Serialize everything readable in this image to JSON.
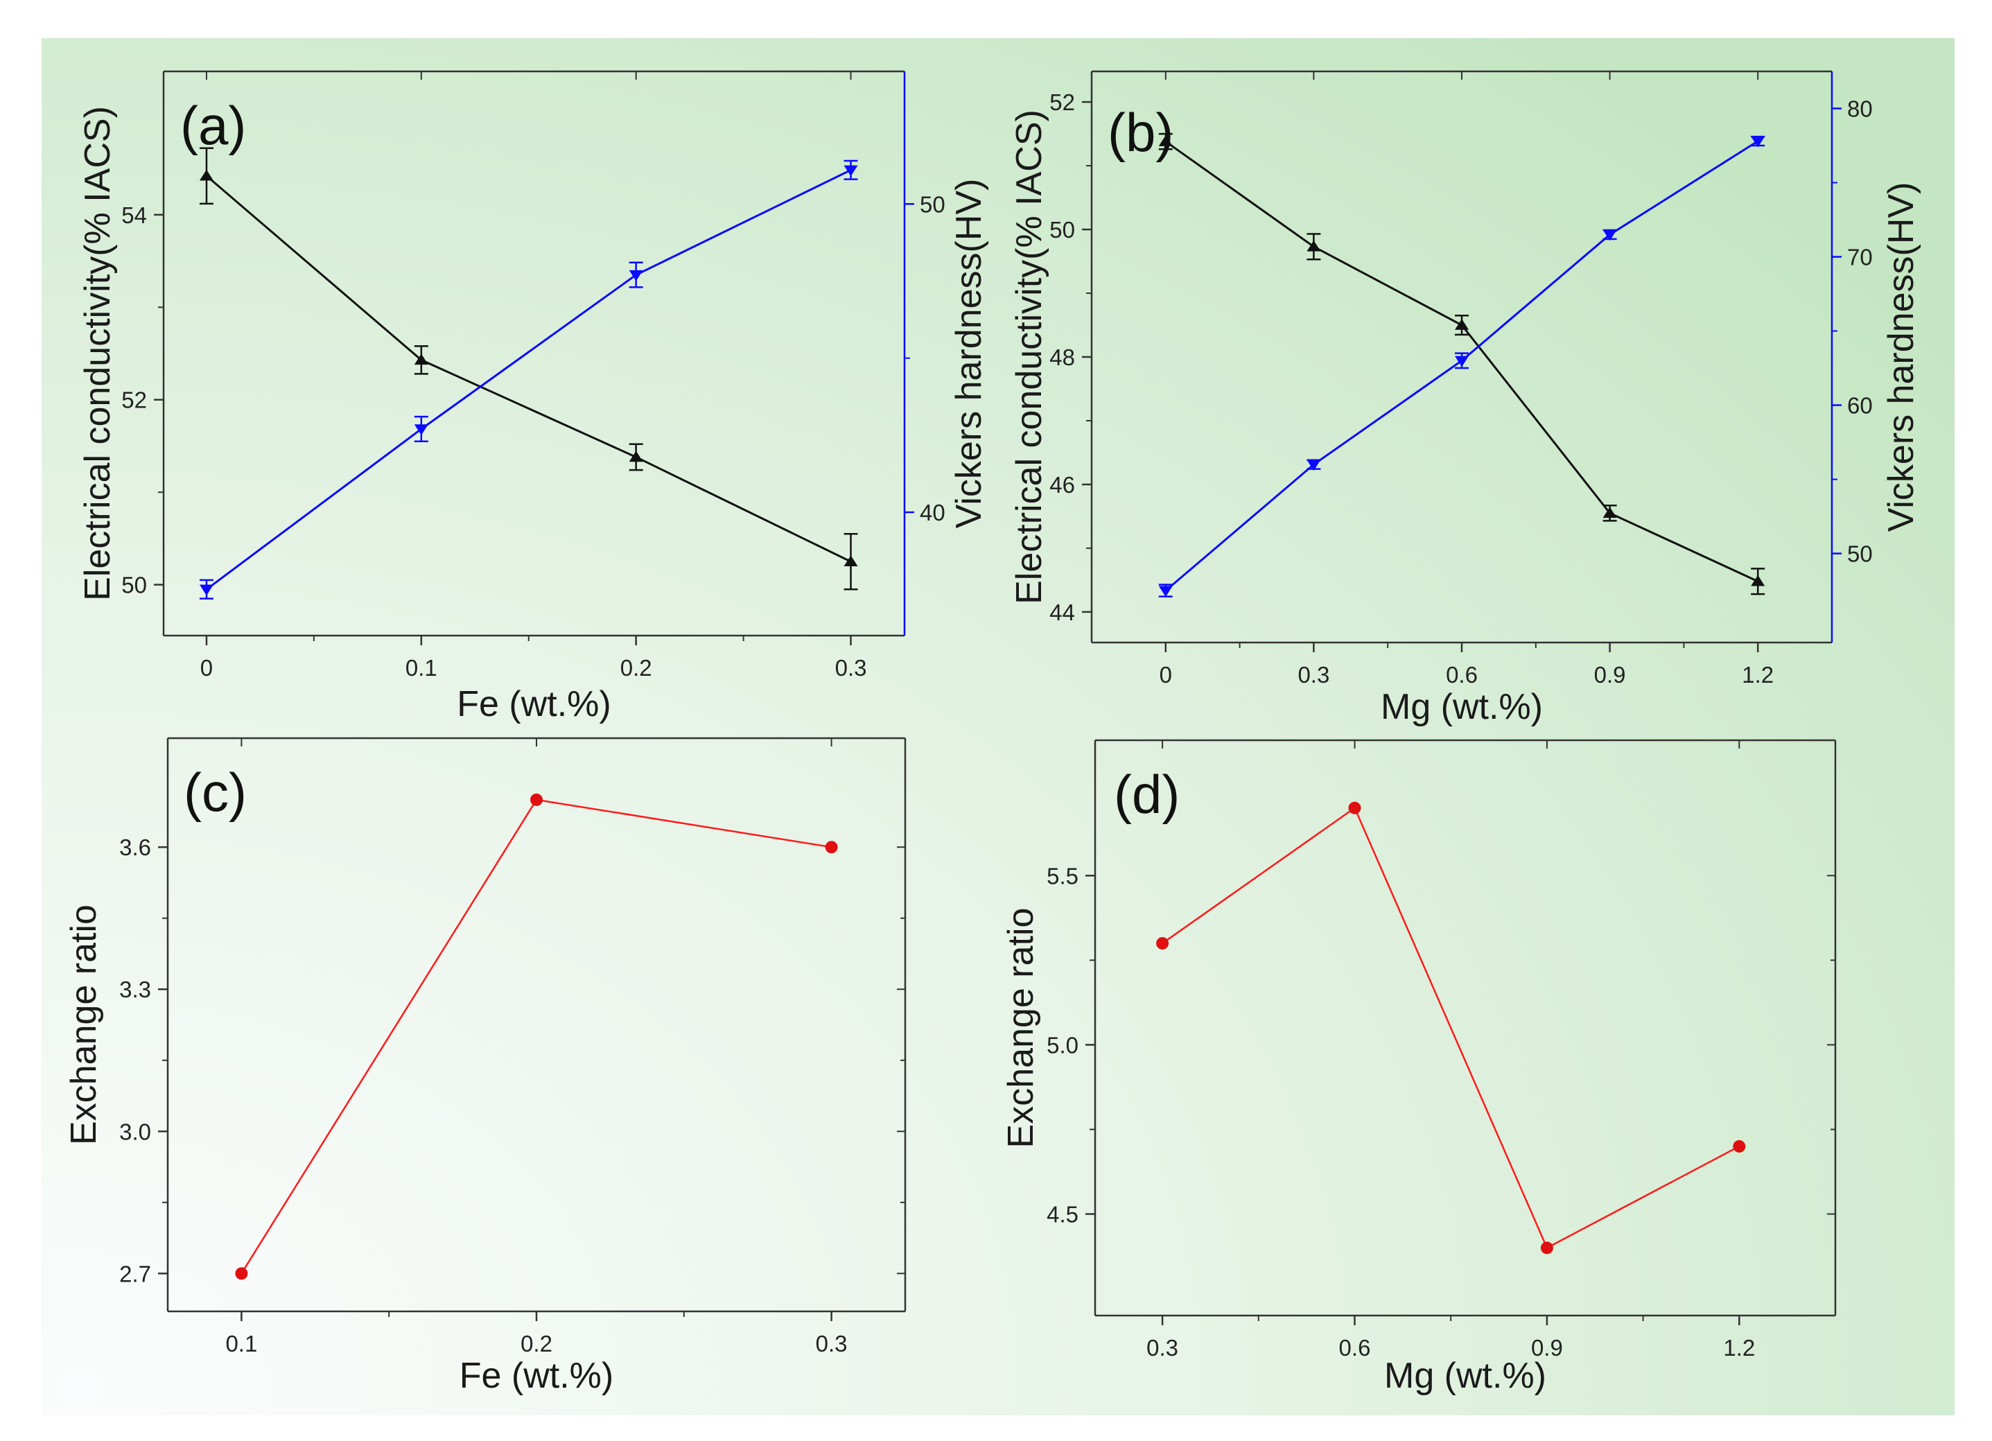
{
  "colors": {
    "black_series": "#111111",
    "blue_series": "#0a0aff",
    "red_series": "#ff1a1a",
    "red_marker": "#e01010",
    "axis": "#333333",
    "bg_green": "#c4e6c2",
    "bg_white": "#f6fbf6"
  },
  "chart_data": [
    {
      "id": "a",
      "panel_label": "(a)",
      "type": "line",
      "xlabel": "Fe (wt.%)",
      "ylabel": "Electrical conductivity(% IACS)",
      "y2label": "Vickers hardness(HV)",
      "xlim": [
        -0.02,
        0.325
      ],
      "ylim": [
        49.45,
        55.55
      ],
      "y2lim": [
        36.0,
        54.3
      ],
      "xticks": [
        0,
        0.1,
        0.2,
        0.3
      ],
      "xtick_labels": [
        "0",
        "0.1",
        "0.2",
        "0.3"
      ],
      "yticks": [
        50,
        52,
        54
      ],
      "ytick_labels": [
        "50",
        "52",
        "54"
      ],
      "y2ticks": [
        40,
        50
      ],
      "y2tick_labels": [
        "40",
        "50"
      ],
      "series": [
        {
          "name": "Electrical conductivity",
          "axis": "left",
          "color": "#111111",
          "marker": "triangle-up",
          "x": [
            0,
            0.1,
            0.2,
            0.3
          ],
          "y": [
            54.42,
            52.43,
            51.38,
            50.25
          ],
          "err": [
            0.3,
            0.15,
            0.14,
            0.3
          ]
        },
        {
          "name": "Vickers hardness",
          "axis": "right",
          "color": "#0a0aff",
          "marker": "triangle-down",
          "x": [
            0,
            0.1,
            0.2,
            0.3
          ],
          "y": [
            37.5,
            42.7,
            47.7,
            51.1
          ],
          "err": [
            0.3,
            0.4,
            0.4,
            0.3
          ]
        }
      ]
    },
    {
      "id": "b",
      "panel_label": "(b)",
      "type": "line",
      "xlabel": "Mg (wt.%)",
      "ylabel": "Electrical conductivity(% IACS)",
      "y2label": "Vickers hardness(HV)",
      "xlim": [
        -0.15,
        1.35
      ],
      "ylim": [
        43.52,
        52.48
      ],
      "y2lim": [
        44.0,
        82.5
      ],
      "xticks": [
        0,
        0.3,
        0.6,
        0.9,
        1.2
      ],
      "xtick_labels": [
        "0",
        "0.3",
        "0.6",
        "0.9",
        "1.2"
      ],
      "yticks": [
        44,
        46,
        48,
        50,
        52
      ],
      "ytick_labels": [
        "44",
        "46",
        "48",
        "50",
        "52"
      ],
      "y2ticks": [
        50,
        60,
        70,
        80
      ],
      "y2tick_labels": [
        "50",
        "60",
        "70",
        "80"
      ],
      "series": [
        {
          "name": "Electrical conductivity",
          "axis": "left",
          "color": "#111111",
          "marker": "triangle-up",
          "x": [
            0,
            0.3,
            0.6,
            0.9,
            1.2
          ],
          "y": [
            51.38,
            49.73,
            48.5,
            45.55,
            44.48
          ],
          "err": [
            0.12,
            0.2,
            0.15,
            0.12,
            0.2
          ]
        },
        {
          "name": "Vickers hardness",
          "axis": "right",
          "color": "#0a0aff",
          "marker": "triangle-down",
          "x": [
            0,
            0.3,
            0.6,
            0.9,
            1.2
          ],
          "y": [
            47.5,
            56.0,
            63.0,
            71.5,
            77.8
          ],
          "err": [
            0.4,
            0.3,
            0.5,
            0.3,
            0.3
          ]
        }
      ]
    },
    {
      "id": "c",
      "panel_label": "(c)",
      "type": "line",
      "xlabel": "Fe (wt.%)",
      "ylabel": "Exchange ratio",
      "xlim": [
        0.075,
        0.325
      ],
      "ylim": [
        2.62,
        3.83
      ],
      "xticks": [
        0.1,
        0.2,
        0.3
      ],
      "xtick_labels": [
        "0.1",
        "0.2",
        "0.3"
      ],
      "yticks": [
        2.7,
        3.0,
        3.3,
        3.6
      ],
      "ytick_labels": [
        "2.7",
        "3.0",
        "3.3",
        "3.6"
      ],
      "series": [
        {
          "name": "Exchange ratio",
          "color": "#ff1a1a",
          "marker": "circle",
          "x": [
            0.1,
            0.2,
            0.3
          ],
          "y": [
            2.7,
            3.7,
            3.6
          ]
        }
      ]
    },
    {
      "id": "d",
      "panel_label": "(d)",
      "type": "line",
      "xlabel": "Mg (wt.%)",
      "ylabel": "Exchange ratio",
      "xlim": [
        0.195,
        1.35
      ],
      "ylim": [
        4.2,
        5.9
      ],
      "xticks": [
        0.3,
        0.6,
        0.9,
        1.2
      ],
      "xtick_labels": [
        "0.3",
        "0.6",
        "0.9",
        "1.2"
      ],
      "yticks": [
        4.5,
        5.0,
        5.5
      ],
      "ytick_labels": [
        "4.5",
        "5.0",
        "5.5"
      ],
      "series": [
        {
          "name": "Exchange ratio",
          "color": "#ff1a1a",
          "marker": "circle",
          "x": [
            0.3,
            0.6,
            0.9,
            1.2
          ],
          "y": [
            5.3,
            5.7,
            4.4,
            4.7
          ]
        }
      ]
    }
  ]
}
